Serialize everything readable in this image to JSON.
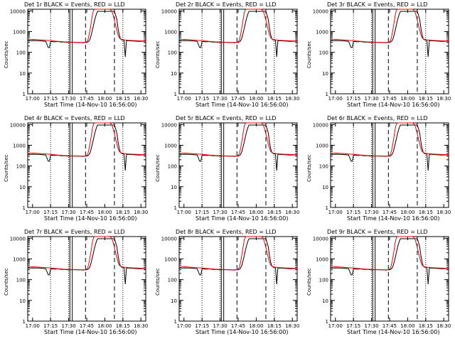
{
  "chart_data": {
    "type": "line",
    "panel_titles": [
      "Det 1r BLACK = Events, RED = LLD",
      "Det 2r BLACK = Events, RED = LLD",
      "Det 3r BLACK = Events, RED = LLD",
      "Det 4r BLACK = Events, RED = LLD",
      "Det 5r BLACK = Events, RED = LLD",
      "Det 6r BLACK = Events, RED = LLD",
      "Det 7r BLACK = Events, RED = LLD",
      "Det 8r BLACK = Events, RED = LLD",
      "Det 9r BLACK = Events, RED = LLD"
    ],
    "xlabel": "Start Time (14-Nov-10 16:56:00)",
    "ylabel": "Counts/sec",
    "x_tick_labels": [
      "17:00",
      "17:15",
      "17:30",
      "17:45",
      "18:00",
      "18:15",
      "18:30"
    ],
    "x_ticks_min": [
      4,
      19,
      34,
      49,
      64,
      79,
      94
    ],
    "xlim_min": [
      0,
      98
    ],
    "y_tick_labels": [
      "1",
      "10",
      "100",
      "1000",
      "10000"
    ],
    "y_ticks": [
      1,
      10,
      100,
      1000,
      10000
    ],
    "ylim": [
      1,
      12000
    ],
    "yscale": "log",
    "dotted_lines_min": [
      19,
      34,
      79
    ],
    "solid_lines_min": [
      35,
      37
    ],
    "dashed_lines_min": [
      48,
      72
    ],
    "series": [
      {
        "name": "BLACK = Events",
        "color": "#000000",
        "x": [
          0,
          5,
          10,
          15,
          17,
          18,
          19,
          20,
          22,
          25,
          28,
          30,
          32,
          34,
          36,
          40,
          44,
          46,
          47,
          48,
          49,
          50,
          51,
          52,
          53,
          54,
          55,
          56,
          57,
          58,
          59,
          60,
          61,
          62,
          63,
          64,
          65,
          66,
          67,
          68,
          69,
          70,
          71,
          72,
          74,
          75,
          76,
          77,
          78,
          79,
          80,
          81,
          82,
          84,
          88,
          92,
          96,
          98
        ],
        "y": [
          360,
          370,
          360,
          340,
          170,
          170,
          330,
          330,
          320,
          330,
          310,
          310,
          305,
          300,
          305,
          300,
          295,
          290,
          300,
          300,
          300,
          320,
          360,
          480,
          800,
          1400,
          2600,
          4500,
          7000,
          9500,
          9500,
          9500,
          9500,
          9500,
          9500,
          9500,
          9500,
          9500,
          9500,
          9500,
          9500,
          9500,
          9500,
          9500,
          4000,
          1500,
          700,
          450,
          400,
          390,
          380,
          60,
          370,
          360,
          350,
          340,
          345,
          345
        ]
      },
      {
        "name": "RED = LLD",
        "color": "#ff0000",
        "x": [
          0,
          5,
          10,
          15,
          20,
          25,
          30,
          35,
          40,
          44,
          46,
          48,
          49,
          50,
          51,
          52,
          53,
          54,
          55,
          56,
          57,
          58,
          59,
          60,
          61,
          62,
          63,
          64,
          65,
          66,
          67,
          68,
          69,
          70,
          71,
          72,
          73,
          74,
          75,
          76,
          78,
          80,
          84,
          88,
          92,
          96,
          98
        ],
        "y": [
          410,
          420,
          400,
          380,
          360,
          340,
          320,
          310,
          305,
          300,
          300,
          305,
          320,
          400,
          700,
          1500,
          3500,
          8000,
          11500,
          12000,
          12000,
          12000,
          12000,
          12000,
          12000,
          12000,
          12000,
          12000,
          12000,
          12000,
          12000,
          12000,
          11000,
          9000,
          6000,
          3500,
          2000,
          1200,
          700,
          500,
          420,
          400,
          380,
          370,
          360,
          355,
          355
        ]
      }
    ]
  }
}
